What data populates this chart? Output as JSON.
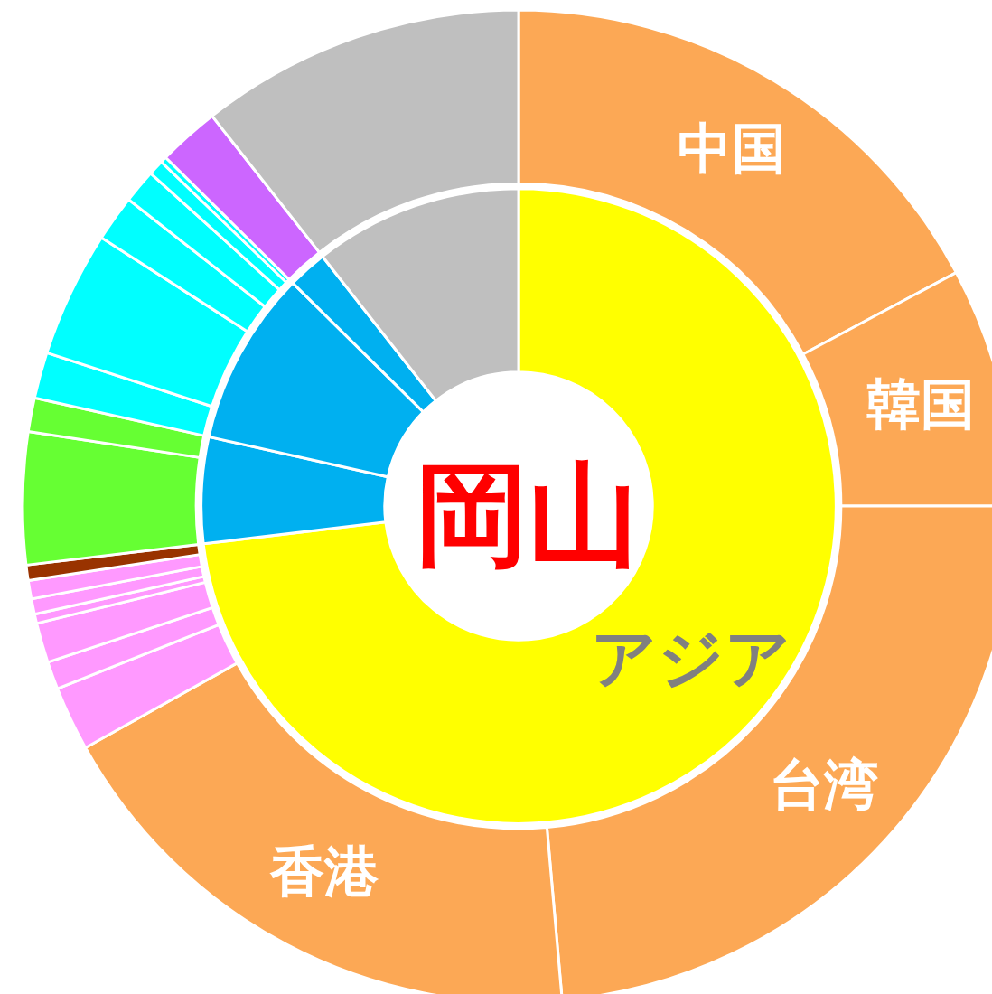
{
  "chart_data": [
    {
      "type": "donut",
      "title": "岡山",
      "categories": [
        "アジア",
        null,
        null,
        null,
        null
      ],
      "values": [
        73.1,
        5.4,
        8.9,
        2.0,
        10.6
      ],
      "colors": [
        "#ffff00",
        "#00b0f0",
        "#00b0f0",
        "#00b0f0",
        "#bfbfbf"
      ]
    },
    {
      "type": "donut",
      "categories": [
        "中国",
        "韓国",
        "台湾",
        "香港",
        null,
        null,
        null,
        null,
        null,
        null,
        null,
        null,
        null,
        null,
        null,
        null,
        null,
        null,
        null,
        null,
        null
      ],
      "values": [
        17.2,
        7.8,
        23.6,
        18.3,
        2.1,
        0.9,
        1.3,
        0.3,
        0.5,
        0.6,
        0.5,
        4.3,
        1.1,
        1.5,
        4.1,
        1.5,
        1.1,
        0.5,
        0.2,
        2.0,
        10.6
      ],
      "colors": [
        "#fca855",
        "#fca855",
        "#fca855",
        "#fca855",
        "#ff99ff",
        "#ff99ff",
        "#ff99ff",
        "#ff99ff",
        "#ff99ff",
        "#ff99ff",
        "#993300",
        "#66ff33",
        "#66ff33",
        "#00ffff",
        "#00ffff",
        "#00ffff",
        "#00ffff",
        "#00ffff",
        "#00ffff",
        "#cc66ff",
        "#bfbfbf"
      ]
    }
  ]
}
